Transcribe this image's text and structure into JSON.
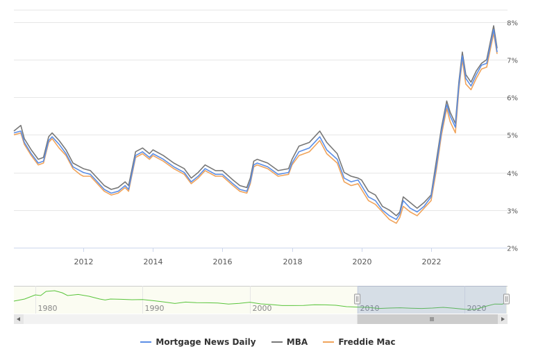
{
  "chart_data": {
    "type": "line",
    "title": "",
    "xlabel": "",
    "ylabel": "",
    "x_range": [
      2010.0,
      2023.9
    ],
    "ylim": [
      2,
      8.4
    ],
    "y_ticks": [
      "2%",
      "3%",
      "4%",
      "5%",
      "6%",
      "7%",
      "8%"
    ],
    "x_ticks": [
      "2012",
      "2014",
      "2016",
      "2018",
      "2020",
      "2022"
    ],
    "grid": "horizontal",
    "legend_position": "bottom-center",
    "series": [
      {
        "name": "Mortgage News Daily",
        "color": "#5b8ee6",
        "x": [
          2010.0,
          2010.2,
          2010.3,
          2010.5,
          2010.7,
          2010.85,
          2011.0,
          2011.1,
          2011.3,
          2011.5,
          2011.7,
          2011.9,
          2012.0,
          2012.2,
          2012.4,
          2012.6,
          2012.8,
          2013.0,
          2013.2,
          2013.3,
          2013.5,
          2013.7,
          2013.9,
          2014.0,
          2014.3,
          2014.6,
          2014.9,
          2015.1,
          2015.3,
          2015.5,
          2015.8,
          2016.0,
          2016.3,
          2016.5,
          2016.7,
          2016.8,
          2016.9,
          2017.0,
          2017.3,
          2017.6,
          2017.9,
          2018.0,
          2018.2,
          2018.5,
          2018.8,
          2019.0,
          2019.3,
          2019.5,
          2019.7,
          2019.9,
          2020.0,
          2020.2,
          2020.4,
          2020.6,
          2020.8,
          2021.0,
          2021.1,
          2021.2,
          2021.4,
          2021.6,
          2021.8,
          2022.0,
          2022.15,
          2022.3,
          2022.45,
          2022.55,
          2022.7,
          2022.8,
          2022.9,
          2023.0,
          2023.15,
          2023.3,
          2023.45,
          2023.6,
          2023.8,
          2023.9
        ],
        "y": [
          5.05,
          5.1,
          4.8,
          4.5,
          4.25,
          4.3,
          4.85,
          4.95,
          4.75,
          4.5,
          4.15,
          4.05,
          4.0,
          3.95,
          3.75,
          3.55,
          3.45,
          3.5,
          3.65,
          3.55,
          4.45,
          4.55,
          4.4,
          4.5,
          4.35,
          4.15,
          4.0,
          3.75,
          3.9,
          4.1,
          3.95,
          3.95,
          3.7,
          3.55,
          3.5,
          3.75,
          4.2,
          4.25,
          4.15,
          3.95,
          4.0,
          4.25,
          4.55,
          4.65,
          4.95,
          4.6,
          4.35,
          3.85,
          3.75,
          3.8,
          3.65,
          3.35,
          3.25,
          3.0,
          2.85,
          2.75,
          2.9,
          3.25,
          3.05,
          2.95,
          3.1,
          3.35,
          4.15,
          5.1,
          5.8,
          5.5,
          5.2,
          6.3,
          7.1,
          6.5,
          6.3,
          6.6,
          6.85,
          6.9,
          7.8,
          7.2
        ]
      },
      {
        "name": "MBA",
        "color": "#777777",
        "x": [
          2010.0,
          2010.2,
          2010.3,
          2010.5,
          2010.7,
          2010.85,
          2011.0,
          2011.1,
          2011.3,
          2011.5,
          2011.7,
          2011.9,
          2012.0,
          2012.2,
          2012.4,
          2012.6,
          2012.8,
          2013.0,
          2013.2,
          2013.3,
          2013.5,
          2013.7,
          2013.9,
          2014.0,
          2014.3,
          2014.6,
          2014.9,
          2015.1,
          2015.3,
          2015.5,
          2015.8,
          2016.0,
          2016.3,
          2016.5,
          2016.7,
          2016.8,
          2016.9,
          2017.0,
          2017.3,
          2017.6,
          2017.9,
          2018.0,
          2018.2,
          2018.5,
          2018.8,
          2019.0,
          2019.3,
          2019.5,
          2019.7,
          2019.9,
          2020.0,
          2020.2,
          2020.4,
          2020.6,
          2020.8,
          2021.0,
          2021.1,
          2021.2,
          2021.4,
          2021.6,
          2021.8,
          2022.0,
          2022.15,
          2022.3,
          2022.45,
          2022.55,
          2022.7,
          2022.8,
          2022.9,
          2023.0,
          2023.15,
          2023.3,
          2023.45,
          2023.6,
          2023.8,
          2023.9
        ],
        "y": [
          5.1,
          5.25,
          4.9,
          4.6,
          4.35,
          4.4,
          4.95,
          5.05,
          4.85,
          4.6,
          4.25,
          4.15,
          4.1,
          4.05,
          3.85,
          3.65,
          3.55,
          3.6,
          3.75,
          3.65,
          4.55,
          4.65,
          4.5,
          4.6,
          4.45,
          4.25,
          4.1,
          3.85,
          4.0,
          4.2,
          4.05,
          4.05,
          3.8,
          3.65,
          3.6,
          3.85,
          4.3,
          4.35,
          4.25,
          4.05,
          4.1,
          4.35,
          4.7,
          4.8,
          5.1,
          4.8,
          4.5,
          4.0,
          3.9,
          3.85,
          3.8,
          3.5,
          3.4,
          3.1,
          3.0,
          2.85,
          2.95,
          3.35,
          3.2,
          3.05,
          3.2,
          3.4,
          4.3,
          5.2,
          5.9,
          5.6,
          5.3,
          6.4,
          7.2,
          6.6,
          6.4,
          6.7,
          6.9,
          7.0,
          7.9,
          7.3
        ]
      },
      {
        "name": "Freddie Mac",
        "color": "#f0a35a",
        "x": [
          2010.0,
          2010.2,
          2010.3,
          2010.5,
          2010.7,
          2010.85,
          2011.0,
          2011.1,
          2011.3,
          2011.5,
          2011.7,
          2011.9,
          2012.0,
          2012.2,
          2012.4,
          2012.6,
          2012.8,
          2013.0,
          2013.2,
          2013.3,
          2013.5,
          2013.7,
          2013.9,
          2014.0,
          2014.3,
          2014.6,
          2014.9,
          2015.1,
          2015.3,
          2015.5,
          2015.8,
          2016.0,
          2016.3,
          2016.5,
          2016.7,
          2016.8,
          2016.9,
          2017.0,
          2017.3,
          2017.6,
          2017.9,
          2018.0,
          2018.2,
          2018.5,
          2018.8,
          2019.0,
          2019.3,
          2019.5,
          2019.7,
          2019.9,
          2020.0,
          2020.2,
          2020.4,
          2020.6,
          2020.8,
          2021.0,
          2021.1,
          2021.2,
          2021.4,
          2021.6,
          2021.8,
          2022.0,
          2022.15,
          2022.3,
          2022.45,
          2022.55,
          2022.7,
          2022.8,
          2022.9,
          2023.0,
          2023.15,
          2023.3,
          2023.45,
          2023.6,
          2023.8,
          2023.9
        ],
        "y": [
          5.0,
          5.05,
          4.75,
          4.45,
          4.2,
          4.25,
          4.8,
          4.9,
          4.65,
          4.45,
          4.1,
          3.95,
          3.9,
          3.9,
          3.7,
          3.5,
          3.4,
          3.45,
          3.6,
          3.5,
          4.4,
          4.5,
          4.35,
          4.45,
          4.3,
          4.1,
          3.95,
          3.7,
          3.85,
          4.05,
          3.9,
          3.9,
          3.65,
          3.5,
          3.45,
          3.7,
          4.15,
          4.2,
          4.1,
          3.9,
          3.95,
          4.2,
          4.45,
          4.55,
          4.85,
          4.5,
          4.25,
          3.75,
          3.65,
          3.7,
          3.55,
          3.25,
          3.15,
          2.95,
          2.75,
          2.65,
          2.8,
          3.1,
          2.95,
          2.85,
          3.05,
          3.25,
          4.05,
          5.0,
          5.7,
          5.35,
          5.05,
          6.2,
          7.0,
          6.35,
          6.2,
          6.5,
          6.75,
          6.8,
          7.7,
          7.15
        ]
      }
    ],
    "navigator": {
      "x_ticks": [
        "1980",
        "1990",
        "2000",
        "2010",
        "2020"
      ],
      "x_range": [
        1978.0,
        2024.0
      ],
      "selected_range": [
        2010.0,
        2023.9
      ],
      "series_color": "#58c43a",
      "series": {
        "x": [
          1978.0,
          1979.0,
          1980.0,
          1980.5,
          1981.0,
          1981.8,
          1982.5,
          1983.0,
          1984.0,
          1985.0,
          1986.0,
          1986.5,
          1987.0,
          1988.0,
          1989.0,
          1990.0,
          1991.0,
          1992.0,
          1993.0,
          1994.0,
          1995.0,
          1996.0,
          1997.0,
          1998.0,
          1999.0,
          2000.0,
          2001.0,
          2002.0,
          2003.0,
          2004.0,
          2005.0,
          2006.0,
          2007.0,
          2008.0,
          2009.0,
          2010.0,
          2011.0,
          2012.0,
          2013.0,
          2014.0,
          2015.0,
          2016.0,
          2017.0,
          2018.0,
          2019.0,
          2020.0,
          2021.0,
          2022.0,
          2022.8,
          2023.5,
          2023.9
        ],
        "y": [
          9.0,
          10.5,
          13.5,
          13.0,
          16.0,
          16.5,
          15.0,
          13.0,
          13.8,
          12.5,
          10.5,
          9.8,
          10.5,
          10.3,
          10.0,
          10.1,
          9.3,
          8.4,
          7.3,
          8.3,
          7.9,
          7.8,
          7.6,
          6.9,
          7.4,
          8.2,
          7.0,
          6.5,
          5.8,
          5.8,
          5.9,
          6.4,
          6.3,
          6.0,
          5.0,
          4.7,
          4.5,
          3.7,
          4.0,
          4.2,
          3.9,
          3.7,
          4.0,
          4.5,
          3.9,
          3.1,
          3.0,
          5.3,
          6.9,
          6.8,
          7.8
        ]
      }
    }
  }
}
